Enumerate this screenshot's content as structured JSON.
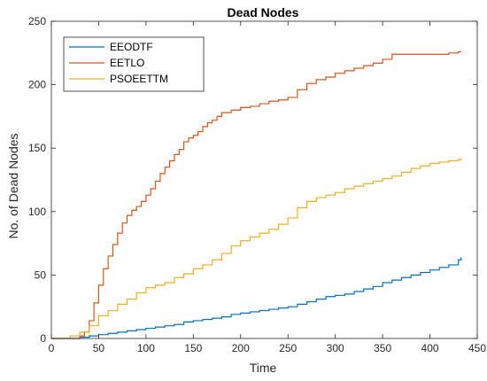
{
  "chart_data": {
    "type": "line",
    "title": "Dead Nodes",
    "xlabel": "Time",
    "ylabel": "No. of Dead Nodes",
    "xlim": [
      0,
      450
    ],
    "ylim": [
      0,
      250
    ],
    "xticks": [
      0,
      50,
      100,
      150,
      200,
      250,
      300,
      350,
      400,
      450
    ],
    "yticks": [
      0,
      50,
      100,
      150,
      200,
      250
    ],
    "grid": false,
    "legend_position": "top-left",
    "series": [
      {
        "name": "EEODTF",
        "color": "#0072BD",
        "x": [
          0,
          20,
          30,
          40,
          50,
          60,
          70,
          80,
          90,
          100,
          110,
          120,
          130,
          140,
          150,
          160,
          170,
          180,
          190,
          200,
          210,
          220,
          230,
          240,
          250,
          260,
          270,
          280,
          290,
          300,
          310,
          320,
          330,
          340,
          350,
          360,
          370,
          380,
          390,
          400,
          410,
          420,
          430,
          433
        ],
        "y": [
          0,
          0,
          1,
          2,
          3,
          4,
          5,
          6,
          7,
          8,
          9,
          10,
          11,
          13,
          14,
          15,
          16,
          17,
          19,
          20,
          21,
          22,
          23,
          24,
          25,
          27,
          29,
          31,
          33,
          34,
          35,
          37,
          39,
          41,
          44,
          46,
          48,
          50,
          52,
          54,
          56,
          58,
          62,
          64
        ]
      },
      {
        "name": "EETLO",
        "color": "#D95319",
        "x": [
          0,
          20,
          30,
          35,
          40,
          45,
          50,
          55,
          60,
          65,
          70,
          75,
          80,
          85,
          90,
          95,
          100,
          105,
          110,
          115,
          120,
          125,
          130,
          135,
          140,
          145,
          150,
          155,
          160,
          165,
          170,
          175,
          180,
          190,
          200,
          210,
          220,
          230,
          240,
          250,
          260,
          270,
          280,
          290,
          300,
          310,
          320,
          330,
          340,
          350,
          360,
          370,
          380,
          390,
          400,
          410,
          420,
          430,
          433
        ],
        "y": [
          0,
          0,
          2,
          5,
          14,
          28,
          42,
          55,
          65,
          74,
          83,
          91,
          97,
          101,
          104,
          108,
          113,
          118,
          124,
          130,
          135,
          140,
          145,
          149,
          155,
          158,
          160,
          163,
          167,
          170,
          172,
          175,
          178,
          180,
          182,
          183,
          185,
          187,
          188,
          190,
          196,
          201,
          204,
          206,
          209,
          211,
          213,
          215,
          217,
          220,
          224,
          224,
          224,
          224,
          224,
          224,
          225,
          226,
          226
        ]
      },
      {
        "name": "PSOEETTM",
        "color": "#EDB120",
        "x": [
          0,
          10,
          20,
          30,
          40,
          50,
          60,
          70,
          80,
          90,
          100,
          110,
          120,
          130,
          140,
          150,
          160,
          170,
          180,
          190,
          200,
          210,
          220,
          230,
          240,
          250,
          260,
          270,
          280,
          290,
          300,
          310,
          320,
          330,
          340,
          350,
          360,
          370,
          380,
          390,
          400,
          410,
          420,
          430,
          433
        ],
        "y": [
          0,
          0,
          2,
          5,
          10,
          18,
          22,
          27,
          31,
          36,
          40,
          42,
          44,
          48,
          51,
          55,
          58,
          62,
          67,
          73,
          77,
          80,
          83,
          86,
          90,
          95,
          103,
          108,
          111,
          113,
          115,
          118,
          120,
          122,
          124,
          126,
          128,
          131,
          134,
          136,
          138,
          139,
          140,
          141,
          142
        ]
      }
    ]
  }
}
